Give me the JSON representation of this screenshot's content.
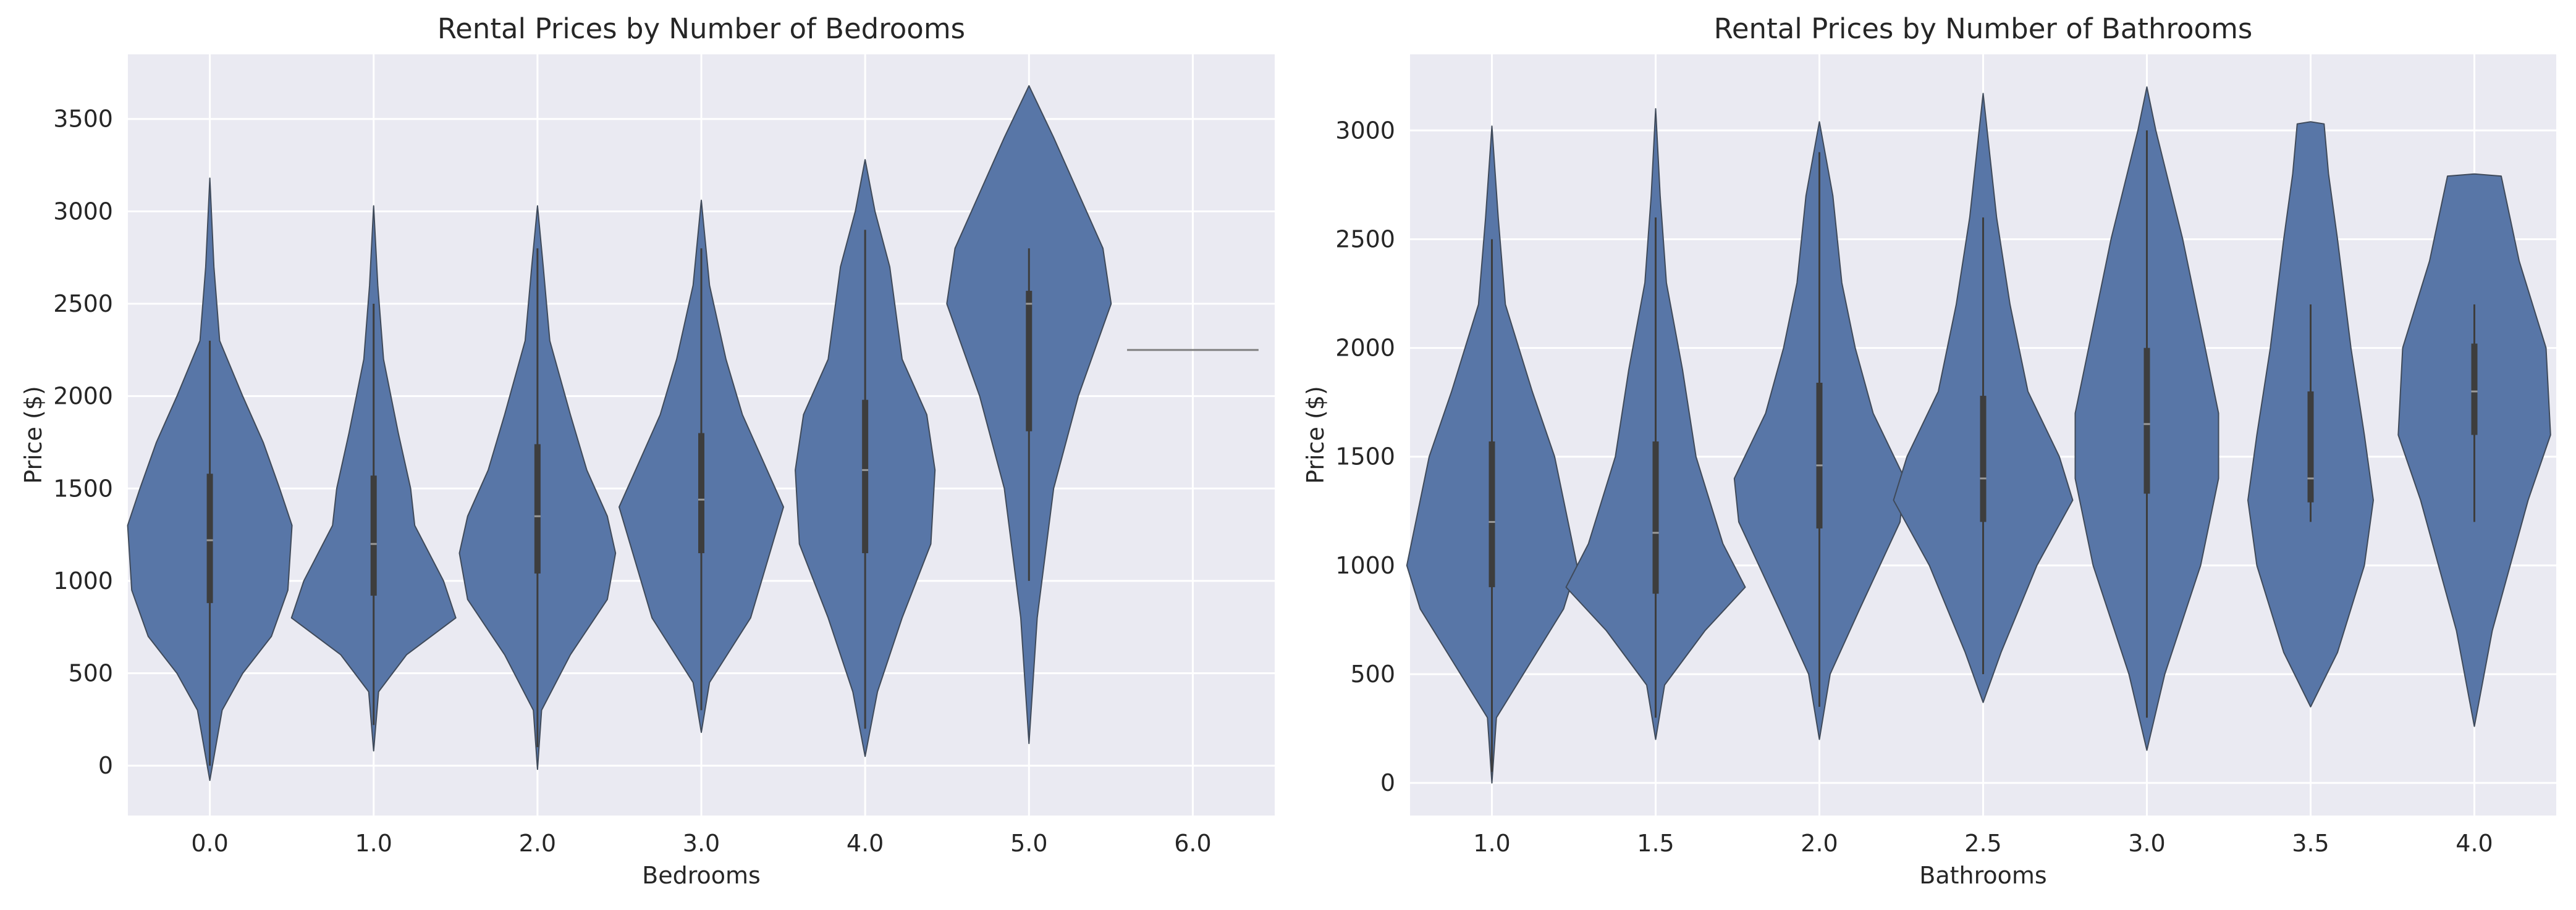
{
  "chart_data": [
    {
      "type": "violin",
      "title": "Rental Prices by Number of Bedrooms",
      "xlabel": "Bedrooms",
      "ylabel": "Price ($)",
      "categories": [
        "0.0",
        "1.0",
        "2.0",
        "3.0",
        "4.0",
        "5.0",
        "6.0"
      ],
      "ylim": [
        -270,
        3850
      ],
      "yticks": [
        0,
        500,
        1000,
        1500,
        2000,
        2500,
        3000,
        3500
      ],
      "grid": true,
      "color": "#5876a7",
      "violins": [
        {
          "category": "0.0",
          "min": -80,
          "q1": 880,
          "median": 1220,
          "q3": 1580,
          "max": 3180,
          "whisker_low": 0,
          "whisker_high": 2300,
          "profile": [
            [
              -80,
              0
            ],
            [
              300,
              0.15
            ],
            [
              500,
              0.4
            ],
            [
              700,
              0.75
            ],
            [
              950,
              0.95
            ],
            [
              1300,
              1.0
            ],
            [
              1500,
              0.85
            ],
            [
              1750,
              0.65
            ],
            [
              2000,
              0.4
            ],
            [
              2300,
              0.12
            ],
            [
              2700,
              0.05
            ],
            [
              3180,
              0
            ]
          ]
        },
        {
          "category": "1.0",
          "min": 80,
          "q1": 920,
          "median": 1200,
          "q3": 1570,
          "max": 3030,
          "whisker_low": 220,
          "whisker_high": 2500,
          "profile": [
            [
              80,
              0
            ],
            [
              400,
              0.06
            ],
            [
              600,
              0.4
            ],
            [
              800,
              1.0
            ],
            [
              1000,
              0.85
            ],
            [
              1300,
              0.5
            ],
            [
              1500,
              0.45
            ],
            [
              1800,
              0.3
            ],
            [
              2200,
              0.12
            ],
            [
              2600,
              0.05
            ],
            [
              3030,
              0
            ]
          ]
        },
        {
          "category": "2.0",
          "min": -20,
          "q1": 1040,
          "median": 1350,
          "q3": 1740,
          "max": 3030,
          "whisker_low": 100,
          "whisker_high": 2800,
          "profile": [
            [
              -20,
              0
            ],
            [
              300,
              0.05
            ],
            [
              600,
              0.4
            ],
            [
              900,
              0.85
            ],
            [
              1150,
              0.95
            ],
            [
              1350,
              0.85
            ],
            [
              1600,
              0.6
            ],
            [
              1900,
              0.4
            ],
            [
              2300,
              0.15
            ],
            [
              2700,
              0.07
            ],
            [
              3030,
              0
            ]
          ]
        },
        {
          "category": "3.0",
          "min": 180,
          "q1": 1150,
          "median": 1440,
          "q3": 1800,
          "max": 3060,
          "whisker_low": 300,
          "whisker_high": 2800,
          "profile": [
            [
              180,
              0
            ],
            [
              450,
              0.1
            ],
            [
              800,
              0.6
            ],
            [
              1100,
              0.8
            ],
            [
              1400,
              1.0
            ],
            [
              1650,
              0.75
            ],
            [
              1900,
              0.5
            ],
            [
              2200,
              0.3
            ],
            [
              2600,
              0.1
            ],
            [
              3060,
              0
            ]
          ]
        },
        {
          "category": "4.0",
          "min": 50,
          "q1": 1150,
          "median": 1600,
          "q3": 1980,
          "max": 3280,
          "whisker_low": 200,
          "whisker_high": 2900,
          "profile": [
            [
              50,
              0
            ],
            [
              400,
              0.15
            ],
            [
              800,
              0.45
            ],
            [
              1200,
              0.8
            ],
            [
              1600,
              0.85
            ],
            [
              1900,
              0.75
            ],
            [
              2200,
              0.45
            ],
            [
              2700,
              0.3
            ],
            [
              3000,
              0.12
            ],
            [
              3280,
              0
            ]
          ]
        },
        {
          "category": "5.0",
          "min": 120,
          "q1": 1810,
          "median": 2500,
          "q3": 2570,
          "max": 3680,
          "whisker_low": 1000,
          "whisker_high": 2800,
          "profile": [
            [
              120,
              0
            ],
            [
              800,
              0.1
            ],
            [
              1500,
              0.3
            ],
            [
              2000,
              0.6
            ],
            [
              2500,
              1.0
            ],
            [
              2800,
              0.9
            ],
            [
              3100,
              0.6
            ],
            [
              3400,
              0.3
            ],
            [
              3680,
              0
            ]
          ]
        },
        {
          "category": "6.0",
          "single_value": 2250
        }
      ]
    },
    {
      "type": "violin",
      "title": "Rental Prices by Number of Bathrooms",
      "xlabel": "Bathrooms",
      "ylabel": "Price ($)",
      "categories": [
        "1.0",
        "1.5",
        "2.0",
        "2.5",
        "3.0",
        "3.5",
        "4.0"
      ],
      "ylim": [
        -150,
        3350
      ],
      "yticks": [
        0,
        500,
        1000,
        1500,
        2000,
        2500,
        3000
      ],
      "grid": true,
      "color": "#5876a7",
      "violins": [
        {
          "category": "1.0",
          "min": 0,
          "q1": 900,
          "median": 1200,
          "q3": 1570,
          "max": 3020,
          "whisker_low": 50,
          "whisker_high": 2500,
          "profile": [
            [
              0,
              0
            ],
            [
              300,
              0.05
            ],
            [
              500,
              0.35
            ],
            [
              800,
              0.8
            ],
            [
              1000,
              0.95
            ],
            [
              1200,
              0.85
            ],
            [
              1500,
              0.7
            ],
            [
              1800,
              0.45
            ],
            [
              2200,
              0.15
            ],
            [
              2600,
              0.07
            ],
            [
              3020,
              0
            ]
          ]
        },
        {
          "category": "1.5",
          "min": 200,
          "q1": 870,
          "median": 1150,
          "q3": 1570,
          "max": 3100,
          "whisker_low": 300,
          "whisker_high": 2600,
          "profile": [
            [
              200,
              0
            ],
            [
              450,
              0.1
            ],
            [
              700,
              0.55
            ],
            [
              900,
              1.0
            ],
            [
              1100,
              0.75
            ],
            [
              1500,
              0.45
            ],
            [
              1900,
              0.3
            ],
            [
              2300,
              0.12
            ],
            [
              2700,
              0.05
            ],
            [
              3100,
              0
            ]
          ]
        },
        {
          "category": "2.0",
          "min": 200,
          "q1": 1170,
          "median": 1460,
          "q3": 1840,
          "max": 3040,
          "whisker_low": 350,
          "whisker_high": 2900,
          "profile": [
            [
              200,
              0
            ],
            [
              500,
              0.12
            ],
            [
              800,
              0.45
            ],
            [
              1200,
              0.9
            ],
            [
              1400,
              0.95
            ],
            [
              1700,
              0.6
            ],
            [
              2000,
              0.4
            ],
            [
              2300,
              0.25
            ],
            [
              2700,
              0.15
            ],
            [
              3040,
              0
            ]
          ]
        },
        {
          "category": "2.5",
          "min": 370,
          "q1": 1200,
          "median": 1400,
          "q3": 1780,
          "max": 3170,
          "whisker_low": 500,
          "whisker_high": 2600,
          "profile": [
            [
              370,
              0
            ],
            [
              600,
              0.2
            ],
            [
              1000,
              0.6
            ],
            [
              1300,
              1.0
            ],
            [
              1500,
              0.85
            ],
            [
              1800,
              0.5
            ],
            [
              2200,
              0.3
            ],
            [
              2600,
              0.15
            ],
            [
              3170,
              0
            ]
          ]
        },
        {
          "category": "3.0",
          "min": 150,
          "q1": 1330,
          "median": 1650,
          "q3": 2000,
          "max": 3200,
          "whisker_low": 300,
          "whisker_high": 3000,
          "profile": [
            [
              150,
              0
            ],
            [
              500,
              0.2
            ],
            [
              1000,
              0.6
            ],
            [
              1400,
              0.8
            ],
            [
              1700,
              0.8
            ],
            [
              2000,
              0.65
            ],
            [
              2500,
              0.4
            ],
            [
              3000,
              0.1
            ],
            [
              3200,
              0
            ]
          ]
        },
        {
          "category": "3.5",
          "min": 350,
          "q1": 1290,
          "median": 1400,
          "q3": 1800,
          "max": 3030,
          "whisker_low": 1200,
          "whisker_high": 2200,
          "profile": [
            [
              350,
              0
            ],
            [
              600,
              0.3
            ],
            [
              1000,
              0.6
            ],
            [
              1300,
              0.7
            ],
            [
              1600,
              0.6
            ],
            [
              2000,
              0.45
            ],
            [
              2500,
              0.3
            ],
            [
              2800,
              0.2
            ],
            [
              3030,
              0.15
            ],
            [
              3040,
              0
            ]
          ]
        },
        {
          "category": "4.0",
          "min": 260,
          "q1": 1600,
          "median": 1800,
          "q3": 2020,
          "max": 2800,
          "whisker_low": 1200,
          "whisker_high": 2200,
          "profile": [
            [
              260,
              0
            ],
            [
              700,
              0.2
            ],
            [
              1300,
              0.6
            ],
            [
              1600,
              0.85
            ],
            [
              2000,
              0.8
            ],
            [
              2400,
              0.5
            ],
            [
              2790,
              0.3
            ],
            [
              2800,
              0
            ]
          ]
        }
      ]
    }
  ]
}
